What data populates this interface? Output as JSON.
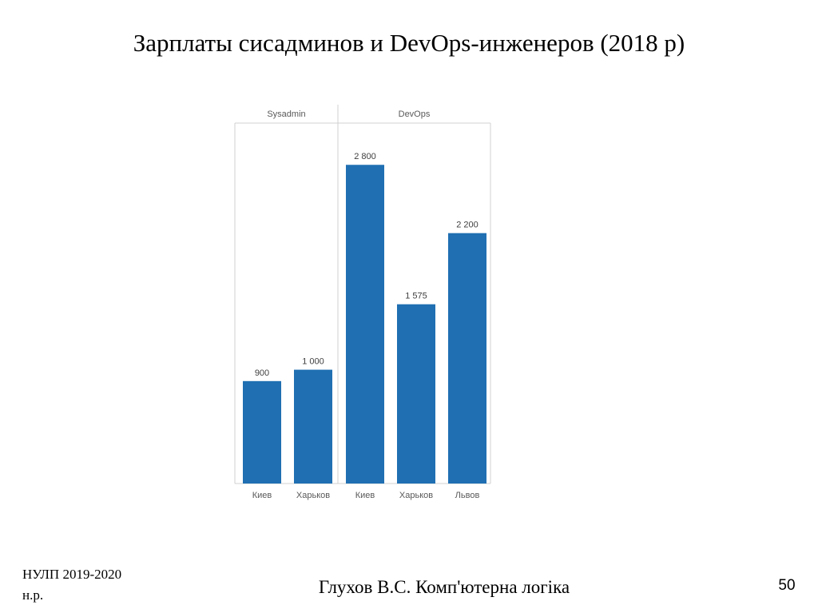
{
  "slide": {
    "title": "Зарплаты сисадминов и DevOps-инженеров (2018 р)",
    "footer_left": "НУЛП 2019-2020 н.р.",
    "footer_center": "Глухов В.С. Комп'ютерна логіка",
    "page_number": "50"
  },
  "chart_data": {
    "type": "bar",
    "title": "",
    "groups": [
      {
        "name": "Sysadmin",
        "categories": [
          "Киев",
          "Харьков"
        ],
        "values": [
          900,
          1000
        ],
        "labels": [
          "900",
          "1 000"
        ]
      },
      {
        "name": "DevOps",
        "categories": [
          "Киев",
          "Харьков",
          "Львов"
        ],
        "values": [
          2800,
          1575,
          2200
        ],
        "labels": [
          "2 800",
          "1 575",
          "2 200"
        ]
      }
    ],
    "ylim": [
      0,
      2900
    ],
    "grid": false,
    "legend": "none",
    "bar_color": "#1f6fb2",
    "label_color": "#595959",
    "frame_color": "#d0d0d0"
  }
}
